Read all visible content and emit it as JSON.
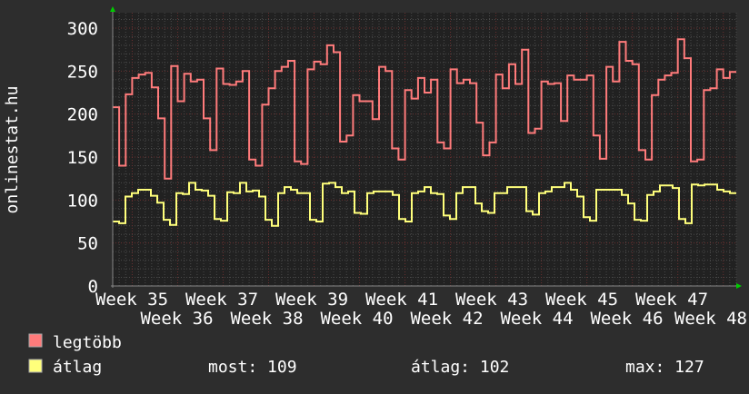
{
  "chart_data": {
    "type": "line",
    "ylabel": "onlinestat.hu",
    "ylim": [
      0,
      300
    ],
    "yticks": [
      0,
      50,
      100,
      150,
      200,
      250,
      300
    ],
    "xtick_labels": [
      "Week 35",
      "Week 36",
      "Week 37",
      "Week 38",
      "Week 39",
      "Week 40",
      "Week 41",
      "Week 42",
      "Week 43",
      "Week 44",
      "Week 45",
      "Week 46",
      "Week 47",
      "Week 48"
    ],
    "grid": true,
    "series": [
      {
        "name": "legtöbb",
        "color": "#ff7b7b",
        "values": [
          208,
          140,
          223,
          242,
          246,
          248,
          231,
          195,
          125,
          256,
          215,
          247,
          238,
          240,
          195,
          158,
          253,
          235,
          234,
          238,
          250,
          147,
          140,
          211,
          230,
          250,
          255,
          262,
          145,
          142,
          252,
          261,
          258,
          280,
          272,
          168,
          175,
          222,
          215,
          215,
          194,
          255,
          250,
          160,
          147,
          228,
          218,
          242,
          225,
          240,
          167,
          160,
          252,
          236,
          240,
          236,
          190,
          152,
          167,
          246,
          230,
          258,
          235,
          275,
          178,
          183,
          238,
          235,
          236,
          192,
          245,
          240,
          240,
          245,
          175,
          148,
          255,
          238,
          284,
          262,
          258,
          158,
          147,
          222,
          240,
          245,
          248,
          287,
          265,
          145,
          147,
          228,
          230,
          252,
          242,
          249
        ]
      },
      {
        "name": "átlag",
        "color": "#ffff7b",
        "values": [
          75,
          73,
          104,
          108,
          112,
          112,
          105,
          97,
          77,
          71,
          108,
          107,
          120,
          112,
          111,
          105,
          78,
          76,
          109,
          108,
          120,
          110,
          111,
          104,
          77,
          70,
          108,
          115,
          112,
          108,
          108,
          77,
          75,
          119,
          120,
          115,
          108,
          110,
          85,
          84,
          108,
          110,
          110,
          110,
          106,
          78,
          75,
          108,
          110,
          115,
          108,
          107,
          82,
          78,
          108,
          115,
          115,
          96,
          87,
          85,
          108,
          108,
          115,
          115,
          115,
          87,
          83,
          108,
          110,
          115,
          115,
          120,
          112,
          104,
          80,
          76,
          112,
          112,
          112,
          112,
          106,
          96,
          77,
          76,
          106,
          110,
          117,
          117,
          114,
          78,
          73,
          118,
          117,
          118,
          118,
          112,
          110,
          108
        ]
      }
    ],
    "legend": {
      "items": [
        {
          "label": "legtöbb",
          "color": "#ff7b7b"
        },
        {
          "label": "átlag",
          "color": "#ffff7b"
        }
      ],
      "stats": {
        "current": "most: 109",
        "average": "átlag: 102",
        "max": "max: 127"
      }
    },
    "colors": {
      "background": "#2d2d2d",
      "plot": "#212121",
      "grid_major": "#6a3030",
      "grid_minor": "#4a4a4a",
      "axis_arrow": "#00cc00"
    }
  }
}
